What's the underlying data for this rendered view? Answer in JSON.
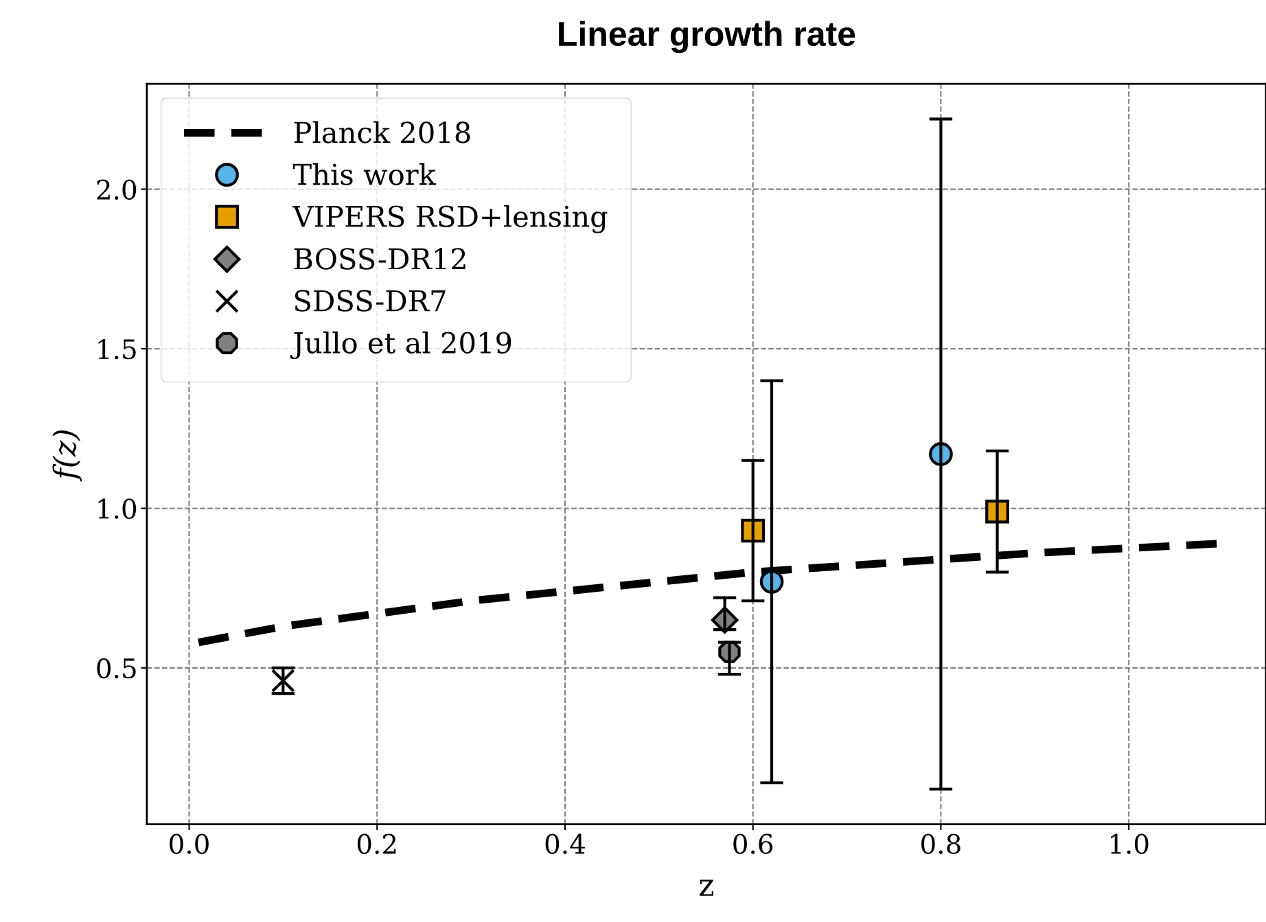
{
  "chart_data": {
    "type": "scatter",
    "title": "Linear growth rate",
    "xlabel": "z",
    "ylabel": "f(z)",
    "xlim": [
      -0.045,
      1.146
    ],
    "ylim": [
      0.01,
      2.33
    ],
    "xticks": [
      {
        "value": 0,
        "label": "0.0"
      },
      0.2,
      0.4,
      0.6,
      0.8,
      {
        "value": 1,
        "label": "1.0"
      }
    ],
    "yticks": [
      0.5,
      {
        "value": 1,
        "label": "1.0"
      },
      1.5,
      {
        "value": 2,
        "label": "2.0"
      }
    ],
    "grid": true,
    "legend": "top left",
    "series": [
      {
        "name": "Planck 2018",
        "type": "line",
        "line_style": "dashed",
        "color": "#000000",
        "marker": "none",
        "x": [
          0.01,
          0.1,
          0.2,
          0.3,
          0.4,
          0.5,
          0.6,
          0.7,
          0.8,
          0.9,
          1.0,
          1.1
        ],
        "values": [
          0.58,
          0.63,
          0.67,
          0.71,
          0.74,
          0.77,
          0.8,
          0.82,
          0.84,
          0.86,
          0.875,
          0.89
        ]
      },
      {
        "name": "This work",
        "marker": "circle",
        "color": "#56b4e9",
        "x": [
          0.62,
          0.8
        ],
        "values": [
          0.77,
          1.17
        ],
        "errors": [
          0.63,
          1.05
        ]
      },
      {
        "name": "VIPERS RSD+lensing",
        "marker": "square",
        "color": "#e69f00",
        "x": [
          0.6,
          0.86
        ],
        "values": [
          0.93,
          0.99
        ],
        "errors": [
          0.22,
          0.19
        ]
      },
      {
        "name": "BOSS-DR12",
        "marker": "diamond",
        "color": "#808080",
        "x": [
          0.57
        ],
        "values": [
          0.65
        ],
        "errors": [
          [
            0.62,
            0.72
          ]
        ]
      },
      {
        "name": "SDSS-DR7",
        "marker": "cross",
        "color": "#000000",
        "x": [
          0.1
        ],
        "values": [
          0.46
        ],
        "errors": [
          0.04
        ]
      },
      {
        "name": "Jullo et al 2019",
        "color": "#808080",
        "x": [
          0.575
        ],
        "values": [
          0.55
        ],
        "errors": [
          [
            0.48,
            0.58
          ]
        ]
      }
    ]
  }
}
